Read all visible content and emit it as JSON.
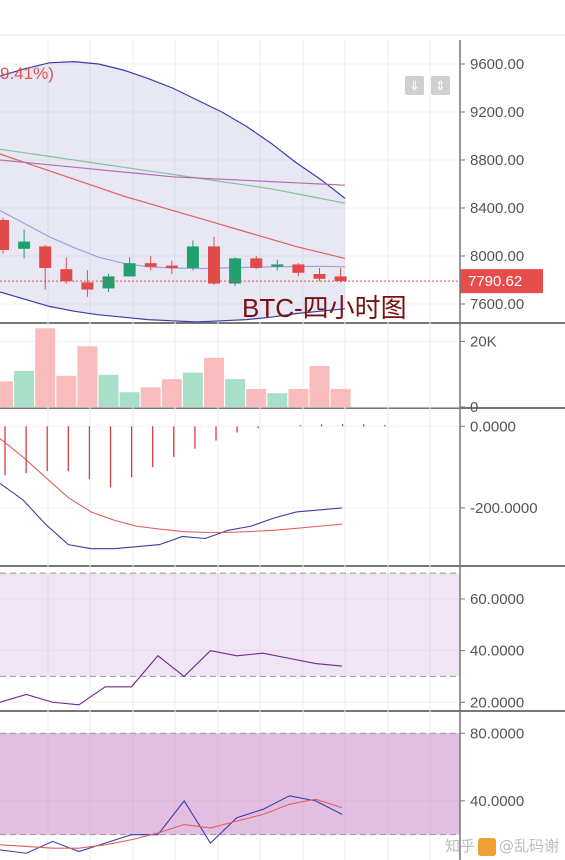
{
  "header": {
    "percent_change": "9.41%)",
    "button_down": "⇓",
    "button_updown": "⇕"
  },
  "watermark": {
    "text_left": "知乎",
    "text_right": "@乱码谢"
  },
  "chart_data": [
    {
      "type": "candlestick",
      "title": "BTC-四小时图",
      "y_ticks": [
        "9600.00",
        "9200.00",
        "8800.00",
        "8400.00",
        "8000.00",
        "7600.00"
      ],
      "ylim": [
        7450,
        9800
      ],
      "current_price": {
        "value": 7790.62,
        "label": "7790.62"
      },
      "candles": [
        {
          "o": 8300,
          "h": 8320,
          "l": 8020,
          "c": 8050
        },
        {
          "o": 8060,
          "h": 8220,
          "l": 7980,
          "c": 8120
        },
        {
          "o": 8080,
          "h": 8090,
          "l": 7720,
          "c": 7900
        },
        {
          "o": 7890,
          "h": 7990,
          "l": 7770,
          "c": 7790
        },
        {
          "o": 7780,
          "h": 7880,
          "l": 7660,
          "c": 7720
        },
        {
          "o": 7730,
          "h": 7850,
          "l": 7700,
          "c": 7830
        },
        {
          "o": 7830,
          "h": 7990,
          "l": 7830,
          "c": 7940
        },
        {
          "o": 7940,
          "h": 8000,
          "l": 7880,
          "c": 7910
        },
        {
          "o": 7920,
          "h": 7960,
          "l": 7850,
          "c": 7900
        },
        {
          "o": 7900,
          "h": 8130,
          "l": 7880,
          "c": 8080
        },
        {
          "o": 8080,
          "h": 8160,
          "l": 7760,
          "c": 7770
        },
        {
          "o": 7770,
          "h": 7990,
          "l": 7750,
          "c": 7980
        },
        {
          "o": 7980,
          "h": 8000,
          "l": 7890,
          "c": 7900
        },
        {
          "o": 7910,
          "h": 7970,
          "l": 7880,
          "c": 7930
        },
        {
          "o": 7930,
          "h": 7940,
          "l": 7830,
          "c": 7860
        },
        {
          "o": 7850,
          "h": 7900,
          "l": 7790,
          "c": 7810
        },
        {
          "o": 7830,
          "h": 7900,
          "l": 7780,
          "c": 7790
        }
      ],
      "series": [
        {
          "name": "",
          "color": "#3c3ca8",
          "values": [
            9500,
            9560,
            9610,
            9620,
            9600,
            9550,
            9480,
            9400,
            9300,
            9200,
            9080,
            8940,
            8780,
            8640,
            8480
          ]
        },
        {
          "name": "",
          "color": "#3c3ca8",
          "values": [
            7700,
            7640,
            7580,
            7540,
            7510,
            7490,
            7470,
            7460,
            7450,
            7460,
            7470,
            7490,
            7520,
            7540,
            7560
          ]
        },
        {
          "name": "",
          "color": "#9aa4de",
          "values": [
            8380,
            8270,
            8160,
            8070,
            7990,
            7940,
            7910,
            7900,
            7895,
            7900,
            7905,
            7910,
            7912,
            7914,
            7910
          ]
        },
        {
          "name": "",
          "color": "#e06060",
          "values": [
            8850,
            8780,
            8710,
            8640,
            8570,
            8500,
            8440,
            8380,
            8320,
            8260,
            8200,
            8140,
            8080,
            8030,
            7980
          ]
        },
        {
          "name": "",
          "color": "#88c0a0",
          "values": [
            8890,
            8860,
            8830,
            8800,
            8770,
            8740,
            8710,
            8680,
            8650,
            8620,
            8590,
            8560,
            8520,
            8480,
            8440
          ]
        },
        {
          "name": "",
          "color": "#b070b0",
          "values": [
            8800,
            8780,
            8760,
            8740,
            8720,
            8700,
            8680,
            8660,
            8650,
            8640,
            8630,
            8620,
            8610,
            8600,
            8590
          ]
        }
      ]
    },
    {
      "type": "bar",
      "title": "",
      "y_ticks": [
        "20K",
        "0"
      ],
      "ylim": [
        0,
        25000
      ],
      "values": [
        7800,
        11000,
        24000,
        9500,
        18500,
        9800,
        4500,
        6000,
        8500,
        10500,
        15000,
        8500,
        5500,
        4200,
        5500,
        12500,
        5500
      ],
      "directions": [
        "down",
        "up",
        "down",
        "down",
        "down",
        "up",
        "up",
        "down",
        "down",
        "up",
        "down",
        "up",
        "down",
        "up",
        "down",
        "down",
        "down"
      ]
    },
    {
      "type": "line",
      "title": "",
      "y_ticks": [
        "0.0000",
        "-200.0000"
      ],
      "ylim": [
        -340,
        40
      ],
      "histogram": [
        -120,
        -115,
        -110,
        -110,
        -130,
        -150,
        -125,
        -100,
        -75,
        -55,
        -35,
        -15,
        -5,
        0,
        3,
        5,
        6,
        5,
        3
      ],
      "series": [
        {
          "name": "",
          "color": "#3c3ca8",
          "values": [
            -140,
            -180,
            -240,
            -290,
            -300,
            -300,
            -295,
            -290,
            -270,
            -275,
            -255,
            -245,
            -225,
            -210,
            -205,
            -200
          ]
        },
        {
          "name": "",
          "color": "#e06060",
          "values": [
            -30,
            -75,
            -125,
            -175,
            -210,
            -230,
            -245,
            -252,
            -258,
            -260,
            -260,
            -258,
            -255,
            -250,
            -245,
            -240
          ]
        }
      ]
    },
    {
      "type": "line",
      "title": "",
      "y_ticks": [
        "60.0000",
        "40.0000",
        "20.0000"
      ],
      "ylim": [
        17,
        72
      ],
      "bands": [
        70,
        30
      ],
      "series": [
        {
          "name": "",
          "color": "#6a2a8a",
          "values": [
            20,
            23,
            20,
            19,
            26,
            26,
            38,
            30,
            40,
            38,
            39,
            37,
            35,
            34
          ]
        }
      ]
    },
    {
      "type": "line",
      "title": "",
      "y_ticks": [
        "80.0000",
        "40.0000"
      ],
      "ylim": [
        5,
        92
      ],
      "bands": [
        80,
        20
      ],
      "series": [
        {
          "name": "",
          "color": "#3c3ca8",
          "values": [
            11,
            9,
            16,
            10,
            15,
            20,
            20,
            40,
            15,
            30,
            35,
            43,
            40,
            32
          ]
        },
        {
          "name": "",
          "color": "#e06060",
          "values": [
            14,
            13,
            12,
            12,
            14,
            17,
            21,
            26,
            24,
            28,
            32,
            38,
            41,
            36
          ]
        }
      ]
    }
  ]
}
